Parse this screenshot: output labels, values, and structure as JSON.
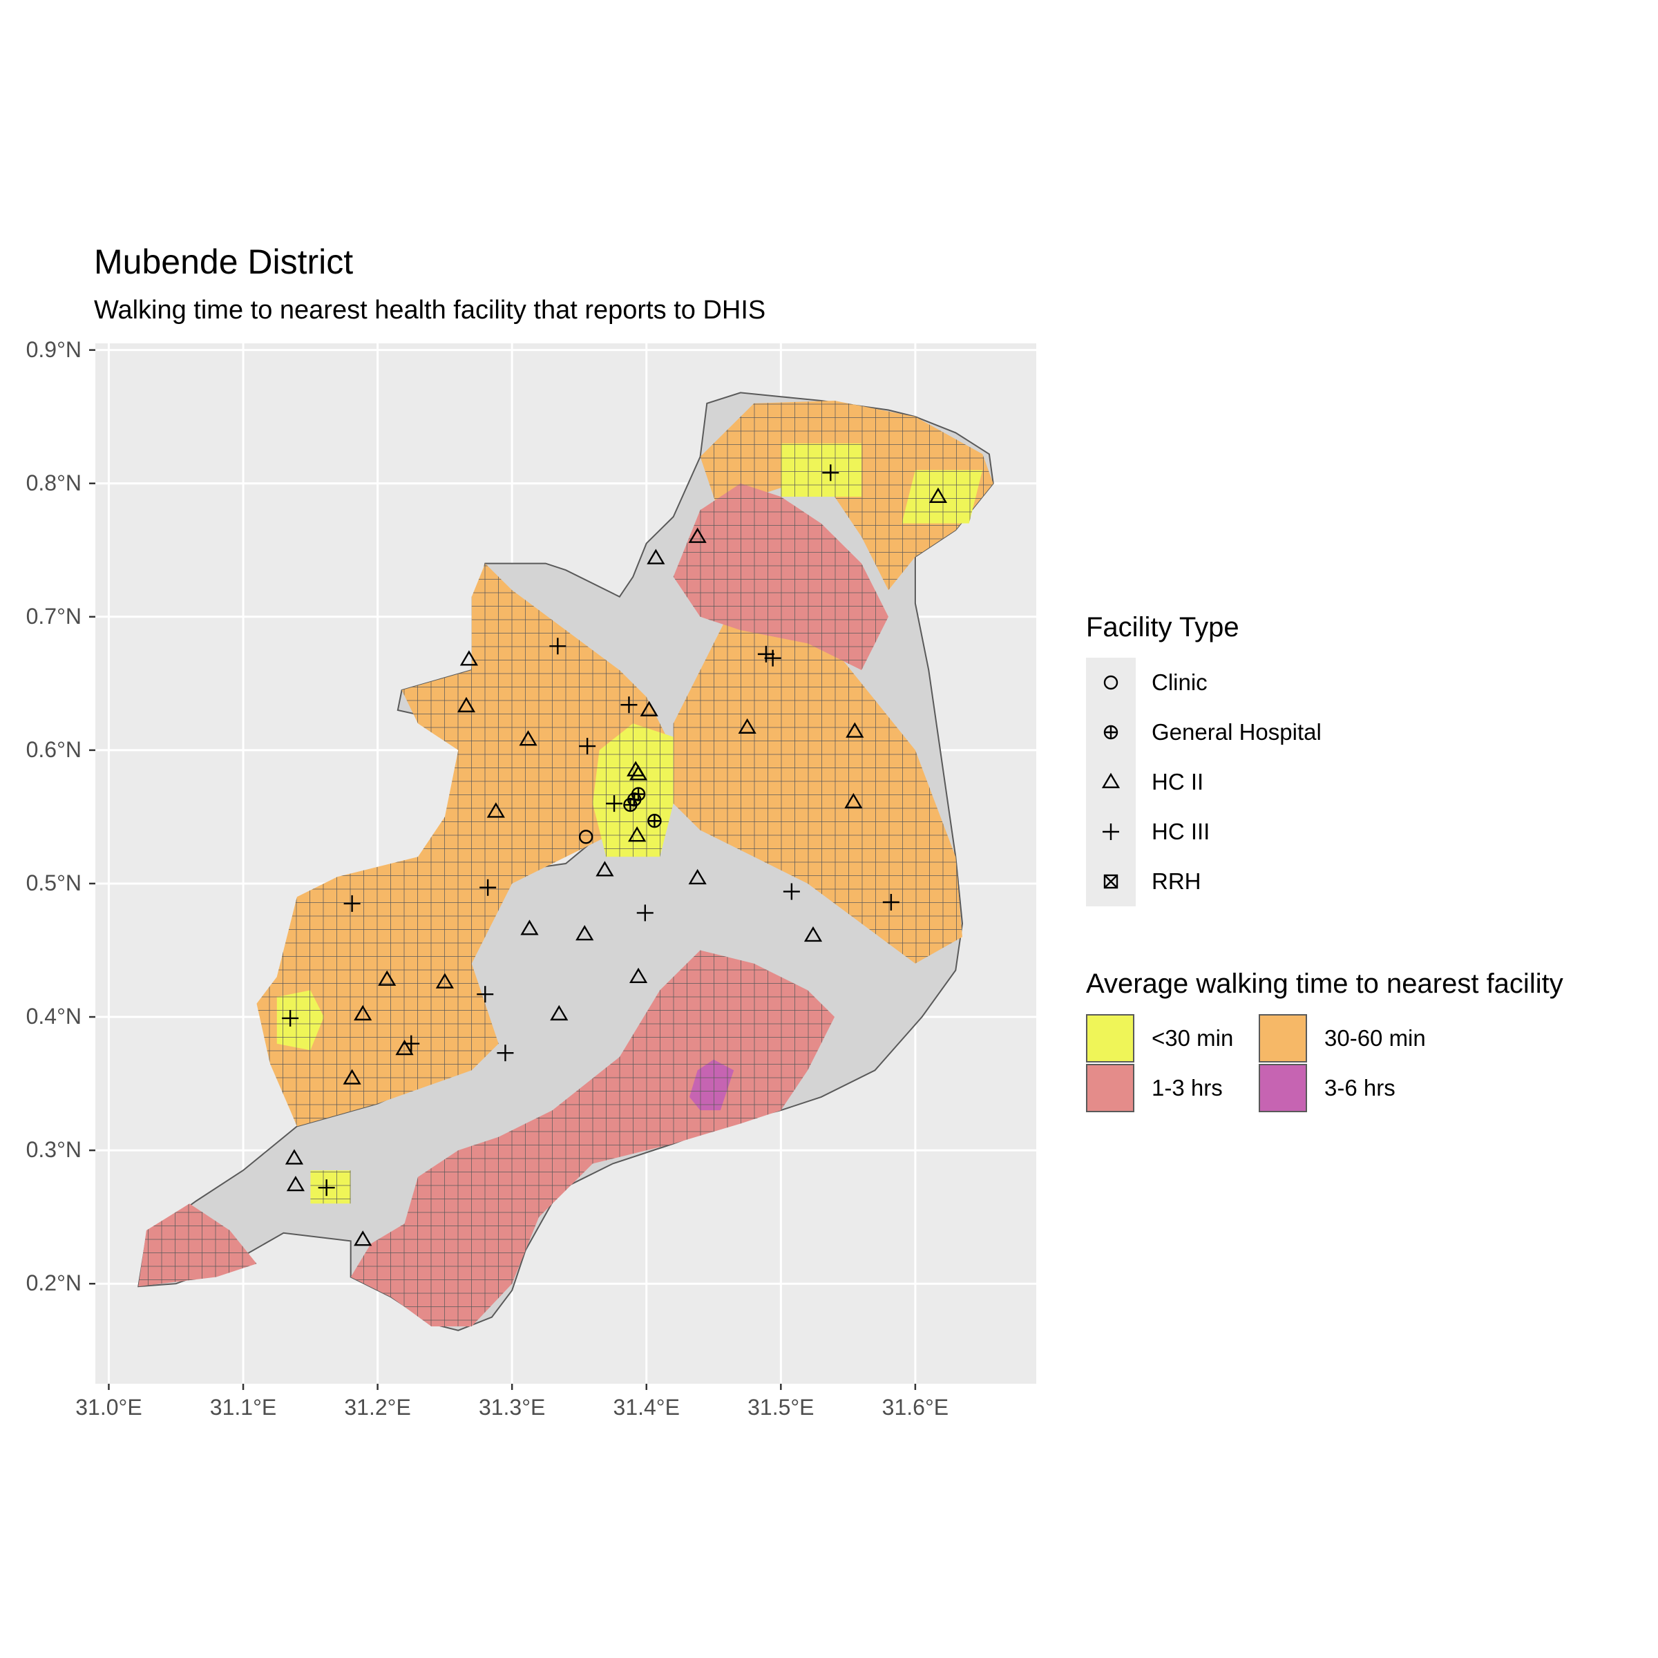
{
  "title": "Mubende District",
  "subtitle": "Walking time to nearest health facility that reports to DHIS",
  "colors": {
    "panel_bg": "#ebebeb",
    "grid": "#ffffff",
    "district_fill": "#d4d4d4",
    "district_outline": "#595959",
    "cell_outline": "#595959"
  },
  "map_extent": {
    "lon": [
      30.99,
      31.69
    ],
    "lat": [
      0.125,
      0.905
    ]
  },
  "district_outline_lonlat": [
    [
      31.022,
      0.198
    ],
    [
      31.028,
      0.235
    ],
    [
      31.065,
      0.262
    ],
    [
      31.1,
      0.285
    ],
    [
      31.14,
      0.318
    ],
    [
      31.165,
      0.325
    ],
    [
      31.2,
      0.335
    ],
    [
      31.255,
      0.36
    ],
    [
      31.27,
      0.38
    ],
    [
      31.26,
      0.44
    ],
    [
      31.27,
      0.505
    ],
    [
      31.34,
      0.515
    ],
    [
      31.37,
      0.54
    ],
    [
      31.39,
      0.6
    ],
    [
      31.36,
      0.61
    ],
    [
      31.3,
      0.625
    ],
    [
      31.26,
      0.62
    ],
    [
      31.215,
      0.63
    ],
    [
      31.218,
      0.645
    ],
    [
      31.27,
      0.66
    ],
    [
      31.275,
      0.715
    ],
    [
      31.28,
      0.74
    ],
    [
      31.325,
      0.74
    ],
    [
      31.34,
      0.735
    ],
    [
      31.38,
      0.715
    ],
    [
      31.39,
      0.73
    ],
    [
      31.4,
      0.755
    ],
    [
      31.42,
      0.775
    ],
    [
      31.44,
      0.82
    ],
    [
      31.445,
      0.86
    ],
    [
      31.47,
      0.868
    ],
    [
      31.5,
      0.865
    ],
    [
      31.53,
      0.862
    ],
    [
      31.58,
      0.855
    ],
    [
      31.6,
      0.85
    ],
    [
      31.63,
      0.838
    ],
    [
      31.655,
      0.822
    ],
    [
      31.658,
      0.8
    ],
    [
      31.63,
      0.765
    ],
    [
      31.6,
      0.745
    ],
    [
      31.6,
      0.71
    ],
    [
      31.61,
      0.66
    ],
    [
      31.62,
      0.59
    ],
    [
      31.63,
      0.52
    ],
    [
      31.635,
      0.47
    ],
    [
      31.63,
      0.435
    ],
    [
      31.605,
      0.4
    ],
    [
      31.57,
      0.36
    ],
    [
      31.53,
      0.34
    ],
    [
      31.5,
      0.33
    ],
    [
      31.46,
      0.32
    ],
    [
      31.42,
      0.305
    ],
    [
      31.375,
      0.29
    ],
    [
      31.355,
      0.28
    ],
    [
      31.335,
      0.27
    ],
    [
      31.31,
      0.225
    ],
    [
      31.3,
      0.195
    ],
    [
      31.285,
      0.175
    ],
    [
      31.26,
      0.165
    ],
    [
      31.24,
      0.17
    ],
    [
      31.21,
      0.19
    ],
    [
      31.18,
      0.205
    ],
    [
      31.18,
      0.232
    ],
    [
      31.13,
      0.238
    ],
    [
      31.09,
      0.215
    ],
    [
      31.05,
      0.2
    ],
    [
      31.022,
      0.198
    ]
  ],
  "walking_time_zones": [
    {
      "category": "30-60 min",
      "polygon": [
        [
          31.14,
          0.318
        ],
        [
          31.2,
          0.335
        ],
        [
          31.27,
          0.36
        ],
        [
          31.29,
          0.38
        ],
        [
          31.27,
          0.44
        ],
        [
          31.3,
          0.5
        ],
        [
          31.38,
          0.54
        ],
        [
          31.42,
          0.6
        ],
        [
          31.4,
          0.64
        ],
        [
          31.38,
          0.66
        ],
        [
          31.34,
          0.69
        ],
        [
          31.3,
          0.72
        ],
        [
          31.28,
          0.74
        ],
        [
          31.27,
          0.715
        ],
        [
          31.27,
          0.66
        ],
        [
          31.218,
          0.645
        ],
        [
          31.23,
          0.62
        ],
        [
          31.26,
          0.6
        ],
        [
          31.25,
          0.55
        ],
        [
          31.23,
          0.52
        ],
        [
          31.17,
          0.505
        ],
        [
          31.14,
          0.49
        ],
        [
          31.125,
          0.43
        ],
        [
          31.11,
          0.41
        ],
        [
          31.12,
          0.365
        ],
        [
          31.135,
          0.33
        ]
      ]
    },
    {
      "category": "30-60 min",
      "polygon": [
        [
          31.44,
          0.82
        ],
        [
          31.48,
          0.86
        ],
        [
          31.54,
          0.862
        ],
        [
          31.6,
          0.85
        ],
        [
          31.65,
          0.822
        ],
        [
          31.658,
          0.8
        ],
        [
          31.63,
          0.765
        ],
        [
          31.6,
          0.745
        ],
        [
          31.58,
          0.72
        ],
        [
          31.56,
          0.76
        ],
        [
          31.54,
          0.79
        ],
        [
          31.51,
          0.8
        ],
        [
          31.48,
          0.79
        ],
        [
          31.46,
          0.76
        ]
      ]
    },
    {
      "category": "30-60 min",
      "polygon": [
        [
          31.46,
          0.7
        ],
        [
          31.52,
          0.7
        ],
        [
          31.56,
          0.65
        ],
        [
          31.6,
          0.6
        ],
        [
          31.63,
          0.52
        ],
        [
          31.635,
          0.46
        ],
        [
          31.6,
          0.44
        ],
        [
          31.56,
          0.47
        ],
        [
          31.52,
          0.5
        ],
        [
          31.48,
          0.52
        ],
        [
          31.44,
          0.54
        ],
        [
          31.42,
          0.56
        ],
        [
          31.42,
          0.62
        ],
        [
          31.44,
          0.66
        ]
      ]
    },
    {
      "category": "1-3 hrs",
      "polygon": [
        [
          31.022,
          0.198
        ],
        [
          31.028,
          0.24
        ],
        [
          31.06,
          0.26
        ],
        [
          31.09,
          0.24
        ],
        [
          31.11,
          0.215
        ],
        [
          31.08,
          0.205
        ]
      ]
    },
    {
      "category": "1-3 hrs",
      "polygon": [
        [
          31.18,
          0.205
        ],
        [
          31.21,
          0.19
        ],
        [
          31.24,
          0.168
        ],
        [
          31.27,
          0.168
        ],
        [
          31.3,
          0.2
        ],
        [
          31.32,
          0.25
        ],
        [
          31.36,
          0.29
        ],
        [
          31.42,
          0.305
        ],
        [
          31.47,
          0.32
        ],
        [
          31.5,
          0.33
        ],
        [
          31.52,
          0.36
        ],
        [
          31.54,
          0.4
        ],
        [
          31.52,
          0.42
        ],
        [
          31.48,
          0.44
        ],
        [
          31.44,
          0.45
        ],
        [
          31.41,
          0.42
        ],
        [
          31.38,
          0.37
        ],
        [
          31.33,
          0.33
        ],
        [
          31.29,
          0.31
        ],
        [
          31.26,
          0.3
        ],
        [
          31.23,
          0.28
        ],
        [
          31.22,
          0.245
        ],
        [
          31.195,
          0.23
        ]
      ]
    },
    {
      "category": "1-3 hrs",
      "polygon": [
        [
          31.44,
          0.78
        ],
        [
          31.47,
          0.8
        ],
        [
          31.5,
          0.79
        ],
        [
          31.53,
          0.77
        ],
        [
          31.56,
          0.74
        ],
        [
          31.58,
          0.7
        ],
        [
          31.56,
          0.66
        ],
        [
          31.52,
          0.68
        ],
        [
          31.47,
          0.69
        ],
        [
          31.44,
          0.7
        ],
        [
          31.42,
          0.73
        ]
      ]
    },
    {
      "category": "3-6 hrs",
      "polygon": [
        [
          31.432,
          0.34
        ],
        [
          31.44,
          0.33
        ],
        [
          31.455,
          0.33
        ],
        [
          31.46,
          0.345
        ],
        [
          31.465,
          0.36
        ],
        [
          31.45,
          0.368
        ],
        [
          31.438,
          0.36
        ]
      ]
    },
    {
      "category": "<30 min",
      "polygon": [
        [
          31.37,
          0.52
        ],
        [
          31.41,
          0.52
        ],
        [
          31.42,
          0.56
        ],
        [
          31.42,
          0.61
        ],
        [
          31.39,
          0.62
        ],
        [
          31.365,
          0.6
        ],
        [
          31.36,
          0.56
        ]
      ]
    },
    {
      "category": "<30 min",
      "polygon": [
        [
          31.125,
          0.38
        ],
        [
          31.15,
          0.375
        ],
        [
          31.16,
          0.4
        ],
        [
          31.15,
          0.42
        ],
        [
          31.125,
          0.415
        ]
      ]
    },
    {
      "category": "<30 min",
      "polygon": [
        [
          31.15,
          0.26
        ],
        [
          31.18,
          0.26
        ],
        [
          31.18,
          0.285
        ],
        [
          31.15,
          0.285
        ]
      ]
    },
    {
      "category": "<30 min",
      "polygon": [
        [
          31.59,
          0.77
        ],
        [
          31.64,
          0.77
        ],
        [
          31.65,
          0.81
        ],
        [
          31.6,
          0.81
        ]
      ]
    },
    {
      "category": "<30 min",
      "polygon": [
        [
          31.5,
          0.79
        ],
        [
          31.56,
          0.79
        ],
        [
          31.56,
          0.83
        ],
        [
          31.5,
          0.83
        ]
      ]
    }
  ],
  "facility_types": [
    "Clinic",
    "General Hospital",
    "HC II",
    "HC III",
    "RRH"
  ],
  "facilities": [
    {
      "type": "Clinic",
      "lon": 31.355,
      "lat": 0.535
    },
    {
      "type": "General Hospital",
      "lon": 31.388,
      "lat": 0.559
    },
    {
      "type": "General Hospital",
      "lon": 31.391,
      "lat": 0.563
    },
    {
      "type": "General Hospital",
      "lon": 31.394,
      "lat": 0.567
    },
    {
      "type": "General Hospital",
      "lon": 31.406,
      "lat": 0.547
    },
    {
      "type": "HC II",
      "lon": 31.438,
      "lat": 0.76
    },
    {
      "type": "HC II",
      "lon": 31.407,
      "lat": 0.744
    },
    {
      "type": "HC II",
      "lon": 31.617,
      "lat": 0.79
    },
    {
      "type": "HC II",
      "lon": 31.268,
      "lat": 0.668
    },
    {
      "type": "HC II",
      "lon": 31.266,
      "lat": 0.633
    },
    {
      "type": "HC II",
      "lon": 31.402,
      "lat": 0.63
    },
    {
      "type": "HC II",
      "lon": 31.312,
      "lat": 0.608
    },
    {
      "type": "HC II",
      "lon": 31.475,
      "lat": 0.617
    },
    {
      "type": "HC II",
      "lon": 31.555,
      "lat": 0.614
    },
    {
      "type": "HC II",
      "lon": 31.392,
      "lat": 0.585
    },
    {
      "type": "HC II",
      "lon": 31.394,
      "lat": 0.582
    },
    {
      "type": "HC II",
      "lon": 31.554,
      "lat": 0.561
    },
    {
      "type": "HC II",
      "lon": 31.288,
      "lat": 0.554
    },
    {
      "type": "HC II",
      "lon": 31.393,
      "lat": 0.536
    },
    {
      "type": "HC II",
      "lon": 31.369,
      "lat": 0.51
    },
    {
      "type": "HC II",
      "lon": 31.438,
      "lat": 0.504
    },
    {
      "type": "HC II",
      "lon": 31.313,
      "lat": 0.466
    },
    {
      "type": "HC II",
      "lon": 31.354,
      "lat": 0.462
    },
    {
      "type": "HC II",
      "lon": 31.524,
      "lat": 0.461
    },
    {
      "type": "HC II",
      "lon": 31.394,
      "lat": 0.43
    },
    {
      "type": "HC II",
      "lon": 31.207,
      "lat": 0.428
    },
    {
      "type": "HC II",
      "lon": 31.25,
      "lat": 0.426
    },
    {
      "type": "HC II",
      "lon": 31.189,
      "lat": 0.402
    },
    {
      "type": "HC II",
      "lon": 31.335,
      "lat": 0.402
    },
    {
      "type": "HC II",
      "lon": 31.22,
      "lat": 0.376
    },
    {
      "type": "HC II",
      "lon": 31.181,
      "lat": 0.354
    },
    {
      "type": "HC II",
      "lon": 31.138,
      "lat": 0.294
    },
    {
      "type": "HC II",
      "lon": 31.139,
      "lat": 0.274
    },
    {
      "type": "HC II",
      "lon": 31.189,
      "lat": 0.233
    },
    {
      "type": "HC III",
      "lon": 31.537,
      "lat": 0.808
    },
    {
      "type": "HC III",
      "lon": 31.334,
      "lat": 0.678
    },
    {
      "type": "HC III",
      "lon": 31.489,
      "lat": 0.672
    },
    {
      "type": "HC III",
      "lon": 31.494,
      "lat": 0.669
    },
    {
      "type": "HC III",
      "lon": 31.387,
      "lat": 0.634
    },
    {
      "type": "HC III",
      "lon": 31.356,
      "lat": 0.603
    },
    {
      "type": "HC III",
      "lon": 31.376,
      "lat": 0.56
    },
    {
      "type": "HC III",
      "lon": 31.282,
      "lat": 0.497
    },
    {
      "type": "HC III",
      "lon": 31.508,
      "lat": 0.494
    },
    {
      "type": "HC III",
      "lon": 31.181,
      "lat": 0.485
    },
    {
      "type": "HC III",
      "lon": 31.582,
      "lat": 0.486
    },
    {
      "type": "HC III",
      "lon": 31.399,
      "lat": 0.478
    },
    {
      "type": "HC III",
      "lon": 31.28,
      "lat": 0.417
    },
    {
      "type": "HC III",
      "lon": 31.135,
      "lat": 0.399
    },
    {
      "type": "HC III",
      "lon": 31.225,
      "lat": 0.38
    },
    {
      "type": "HC III",
      "lon": 31.295,
      "lat": 0.373
    },
    {
      "type": "HC III",
      "lon": 31.162,
      "lat": 0.272
    }
  ],
  "axes": {
    "x_ticks": [
      {
        "value": 31.0,
        "label": "31.0°E"
      },
      {
        "value": 31.1,
        "label": "31.1°E"
      },
      {
        "value": 31.2,
        "label": "31.2°E"
      },
      {
        "value": 31.3,
        "label": "31.3°E"
      },
      {
        "value": 31.4,
        "label": "31.4°E"
      },
      {
        "value": 31.5,
        "label": "31.5°E"
      },
      {
        "value": 31.6,
        "label": "31.6°E"
      }
    ],
    "y_ticks": [
      {
        "value": 0.2,
        "label": "0.2°N"
      },
      {
        "value": 0.3,
        "label": "0.3°N"
      },
      {
        "value": 0.4,
        "label": "0.4°N"
      },
      {
        "value": 0.5,
        "label": "0.5°N"
      },
      {
        "value": 0.6,
        "label": "0.6°N"
      },
      {
        "value": 0.7,
        "label": "0.7°N"
      },
      {
        "value": 0.8,
        "label": "0.8°N"
      },
      {
        "value": 0.9,
        "label": "0.9°N"
      }
    ],
    "grid": true
  },
  "legend_facility": {
    "title": "Facility Type",
    "items": [
      {
        "label": "Clinic",
        "shape": "circle-icon"
      },
      {
        "label": "General Hospital",
        "shape": "circle-plus-icon"
      },
      {
        "label": "HC II",
        "shape": "triangle-icon"
      },
      {
        "label": "HC III",
        "shape": "plus-icon"
      },
      {
        "label": "RRH",
        "shape": "square-cross-icon"
      }
    ]
  },
  "legend_time": {
    "title": "Average walking time to nearest facility",
    "items": [
      {
        "label": "<30 min",
        "color": "#eff558"
      },
      {
        "label": "30-60 min",
        "color": "#f6b867"
      },
      {
        "label": "1-3 hrs",
        "color": "#e48c8a"
      },
      {
        "label": "3-6 hrs",
        "color": "#c664b2"
      }
    ]
  }
}
